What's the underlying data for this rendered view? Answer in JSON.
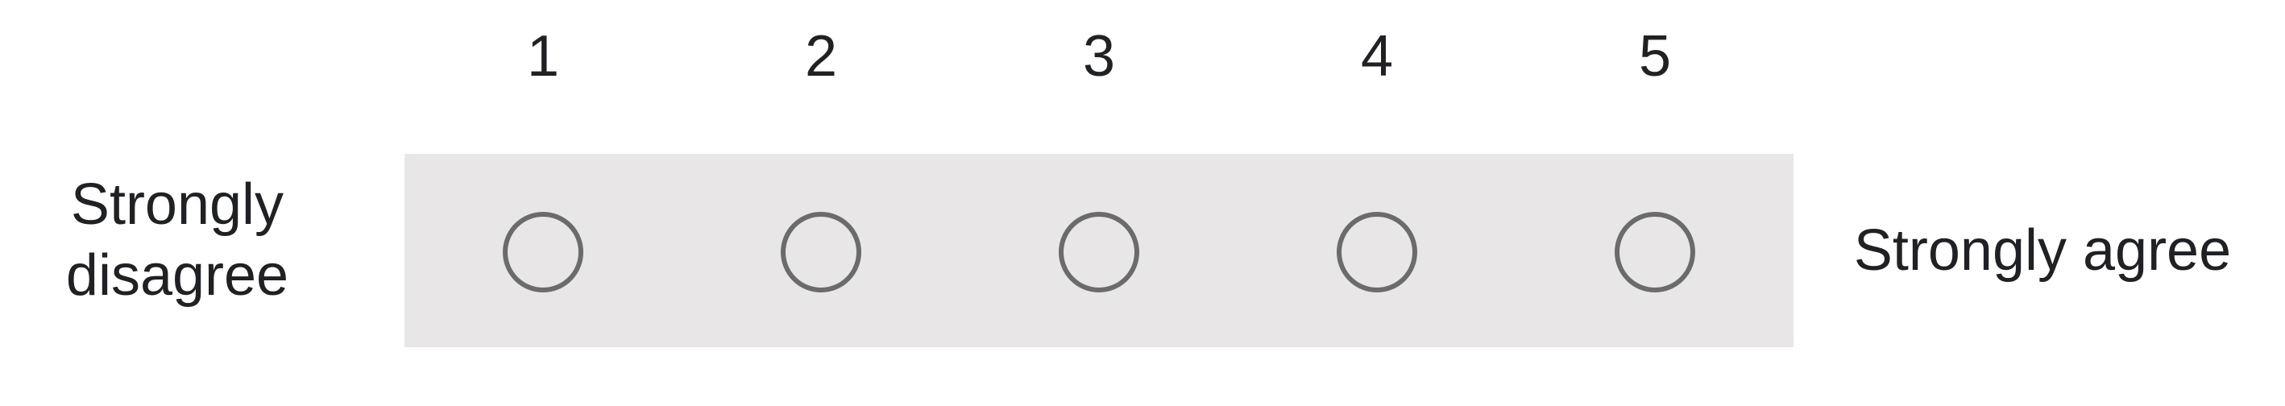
{
  "scale": {
    "options": [
      {
        "number": "1"
      },
      {
        "number": "2"
      },
      {
        "number": "3"
      },
      {
        "number": "4"
      },
      {
        "number": "5"
      }
    ],
    "left_label_line1": "Strongly",
    "left_label_line2": "disagree",
    "right_label": "Strongly agree"
  },
  "colors": {
    "band": "#e8e6e7",
    "radio_border": "#6b6b6b",
    "text": "#202124"
  }
}
